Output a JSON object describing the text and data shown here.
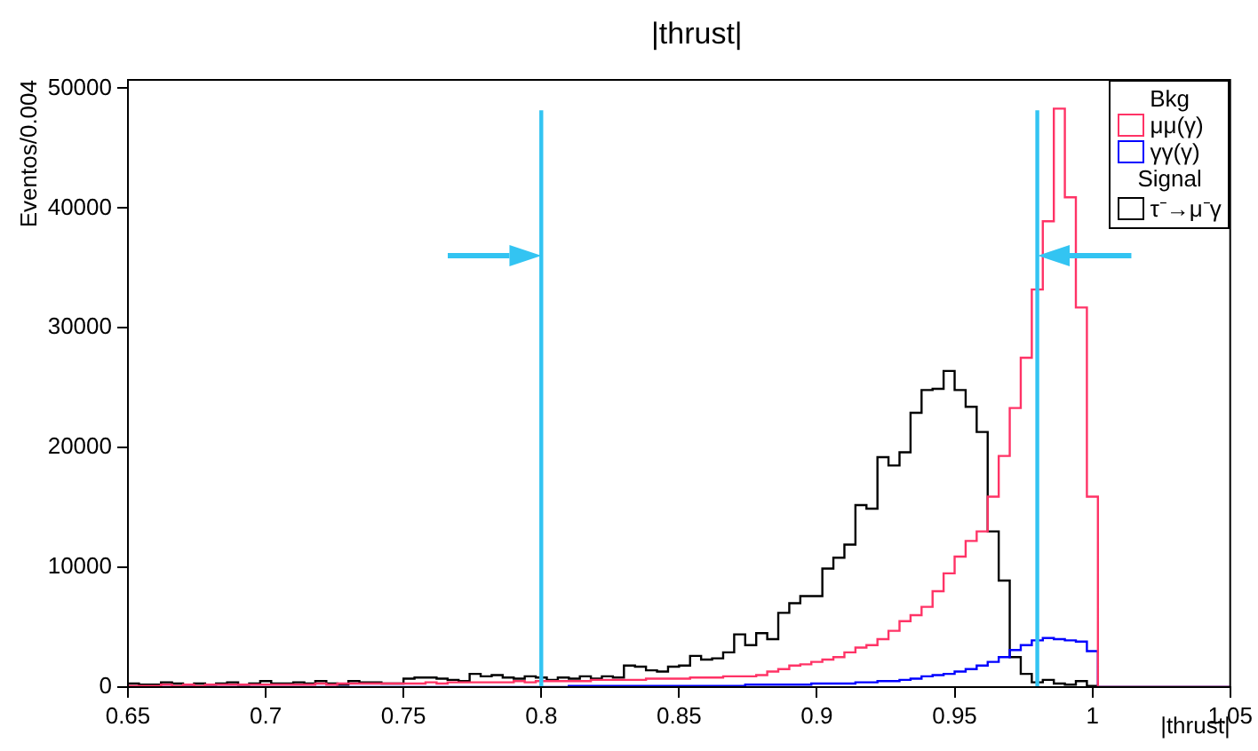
{
  "chart_data": {
    "type": "histogram",
    "title": "|thrust|",
    "xlabel": "|thrust|",
    "ylabel": "Eventos/0.004",
    "bins": [
      0.65,
      0.654,
      0.658,
      0.662,
      0.666,
      0.67,
      0.674,
      0.678,
      0.682,
      0.686,
      0.69,
      0.694,
      0.698,
      0.702,
      0.706,
      0.71,
      0.714,
      0.718,
      0.722,
      0.726,
      0.73,
      0.734,
      0.738,
      0.742,
      0.746,
      0.75,
      0.754,
      0.758,
      0.762,
      0.766,
      0.77,
      0.774,
      0.778,
      0.782,
      0.786,
      0.79,
      0.794,
      0.798,
      0.802,
      0.806,
      0.81,
      0.814,
      0.818,
      0.822,
      0.826,
      0.83,
      0.834,
      0.838,
      0.842,
      0.846,
      0.85,
      0.854,
      0.858,
      0.862,
      0.866,
      0.87,
      0.874,
      0.878,
      0.882,
      0.886,
      0.89,
      0.894,
      0.898,
      0.902,
      0.906,
      0.91,
      0.914,
      0.918,
      0.922,
      0.926,
      0.93,
      0.934,
      0.938,
      0.942,
      0.946,
      0.95,
      0.954,
      0.958,
      0.962,
      0.966,
      0.97,
      0.974,
      0.978,
      0.982,
      0.986,
      0.99,
      0.994,
      0.998,
      1.002,
      1.006,
      1.01,
      1.014,
      1.018,
      1.022,
      1.026,
      1.03,
      1.034,
      1.038,
      1.042,
      1.046,
      1.05
    ],
    "series": [
      {
        "name": "μμ(γ)",
        "color": "#ff3366",
        "values": [
          100,
          100,
          100,
          200,
          100,
          200,
          100,
          200,
          200,
          200,
          200,
          200,
          200,
          200,
          200,
          200,
          200,
          300,
          200,
          300,
          300,
          300,
          300,
          300,
          300,
          300,
          300,
          400,
          300,
          400,
          400,
          400,
          400,
          400,
          400,
          500,
          400,
          500,
          500,
          500,
          500,
          500,
          600,
          600,
          600,
          600,
          600,
          700,
          700,
          700,
          700,
          800,
          800,
          800,
          900,
          900,
          900,
          1000,
          1300,
          1500,
          1800,
          1900,
          2100,
          2300,
          2500,
          2900,
          3300,
          3500,
          4000,
          4700,
          5500,
          6000,
          6700,
          8000,
          9500,
          10900,
          12200,
          13000,
          15900,
          19300,
          23300,
          27500,
          33200,
          38900,
          48300,
          40900,
          31700,
          15900,
          0,
          0,
          0,
          0,
          0,
          0,
          0,
          0,
          0,
          0,
          0,
          0
        ]
      },
      {
        "name": "γγ(γ)",
        "color": "#0000ff",
        "values": [
          0,
          0,
          0,
          0,
          0,
          0,
          0,
          0,
          0,
          0,
          0,
          0,
          0,
          0,
          0,
          0,
          0,
          0,
          0,
          0,
          0,
          0,
          0,
          0,
          0,
          0,
          0,
          0,
          0,
          0,
          0,
          0,
          0,
          0,
          0,
          0,
          0,
          0,
          0,
          0,
          100,
          100,
          100,
          100,
          100,
          100,
          100,
          100,
          100,
          100,
          100,
          100,
          100,
          100,
          100,
          100,
          200,
          200,
          200,
          200,
          200,
          200,
          300,
          300,
          300,
          300,
          400,
          400,
          500,
          500,
          600,
          700,
          900,
          1000,
          1100,
          1300,
          1500,
          1800,
          2100,
          2500,
          3100,
          3500,
          3900,
          4100,
          4000,
          3900,
          3800,
          3000,
          0,
          0,
          0,
          0,
          0,
          0,
          0,
          0,
          0,
          0,
          0,
          0
        ]
      },
      {
        "name": "τ⁻→μ⁻γ",
        "color": "#000000",
        "values": [
          300,
          200,
          200,
          400,
          300,
          200,
          300,
          200,
          300,
          400,
          200,
          300,
          500,
          300,
          300,
          400,
          300,
          500,
          300,
          200,
          500,
          400,
          400,
          300,
          300,
          700,
          800,
          800,
          700,
          600,
          500,
          1100,
          900,
          1000,
          800,
          700,
          900,
          800,
          600,
          800,
          700,
          900,
          700,
          900,
          800,
          1800,
          1700,
          1400,
          1300,
          1700,
          1800,
          2600,
          2300,
          2400,
          2900,
          4400,
          3500,
          4500,
          4000,
          6200,
          7000,
          7600,
          7600,
          9900,
          10800,
          11900,
          15200,
          14900,
          19200,
          18500,
          19600,
          22900,
          24800,
          24900,
          26400,
          24800,
          23400,
          21300,
          13000,
          8900,
          2500,
          1100,
          400,
          600,
          300,
          200,
          500,
          100,
          0,
          0,
          0,
          0,
          0,
          0,
          0,
          0,
          0,
          0,
          0,
          0
        ]
      }
    ],
    "xlim": [
      0.65,
      1.05
    ],
    "xticks": [
      0.65,
      0.7,
      0.75,
      0.8,
      0.85,
      0.9,
      0.95,
      1,
      1.05
    ],
    "ylim": [
      0,
      50700
    ],
    "yticks": [
      0,
      10000,
      20000,
      30000,
      40000,
      50000
    ],
    "ref_lines": [
      {
        "axis": "x",
        "value": 0.8,
        "color": "#33c4f2"
      },
      {
        "axis": "x",
        "value": 0.98,
        "color": "#33c4f2"
      }
    ],
    "annotations": [
      "Bkg",
      "Signal"
    ],
    "legend": "top right",
    "grid": false
  }
}
